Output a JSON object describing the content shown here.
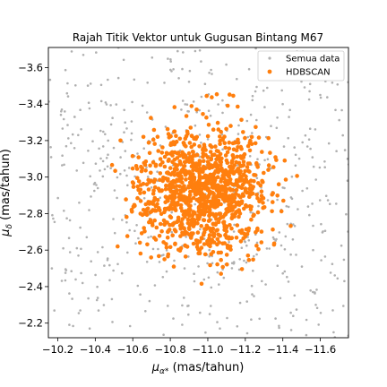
{
  "chart_data": {
    "type": "scatter",
    "title": "Rajah Titik Vektor untuk Gugusan Bintang M67",
    "xlabel": "μα* (mas/tahun)",
    "ylabel": "μδ (mas/tahun)",
    "xlim": [
      -10.15,
      -11.75
    ],
    "ylim": [
      -2.12,
      -3.71
    ],
    "xticks": [
      -10.2,
      -10.4,
      -10.6,
      -10.8,
      -11.0,
      -11.2,
      -11.4,
      -11.6
    ],
    "yticks": [
      -3.6,
      -3.4,
      -3.2,
      -3.0,
      -2.8,
      -2.6,
      -2.4,
      -2.2
    ],
    "xtick_labels": [
      "−10.2",
      "−10.4",
      "−10.6",
      "−10.8",
      "−11.0",
      "−11.2",
      "−11.4",
      "−11.6"
    ],
    "ytick_labels": [
      "−3.6",
      "−3.4",
      "−3.2",
      "−3.0",
      "−2.8",
      "−2.6",
      "−2.4",
      "−2.2"
    ],
    "grid": false,
    "legend": {
      "position": "top-right"
    },
    "series": [
      {
        "name": "Semua data",
        "color": "#b0b0b0",
        "marker": "small-dot",
        "distribution": {
          "center": [
            -10.95,
            -2.92
          ],
          "spread": [
            0.45,
            0.42
          ],
          "count": 650,
          "seed": 17
        }
      },
      {
        "name": "HDBSCAN",
        "color": "#ff7f0e",
        "marker": "dot",
        "distribution": {
          "center": [
            -10.98,
            -2.92
          ],
          "spread": [
            0.17,
            0.17
          ],
          "count": 1150,
          "seed": 42,
          "max_radius": 0.55
        }
      }
    ]
  }
}
